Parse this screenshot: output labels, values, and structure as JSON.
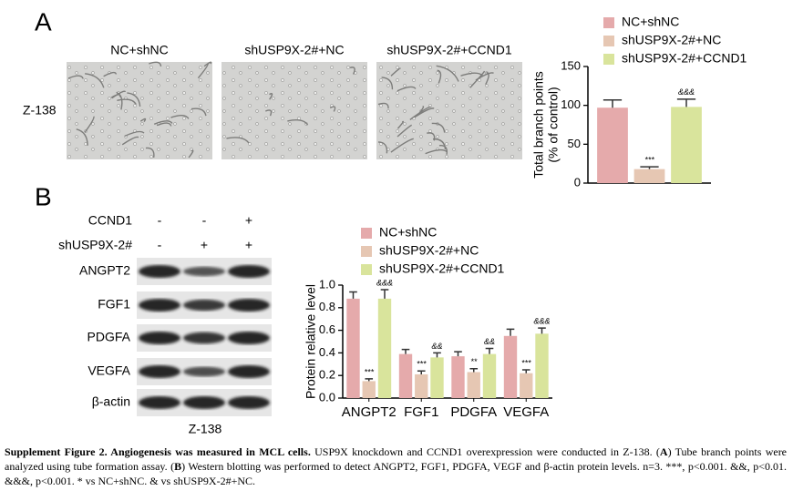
{
  "panel_a": {
    "label": "A",
    "cell_line": "Z-138",
    "image_labels": [
      "NC+shNC",
      "shUSP9X-2#+NC",
      "shUSP9X-2#+CCND1"
    ]
  },
  "panel_b": {
    "label": "B",
    "conditions": [
      {
        "name": "CCND1",
        "signs": [
          "-",
          "-",
          "+"
        ]
      },
      {
        "name": "shUSP9X-2#",
        "signs": [
          "-",
          "+",
          "+"
        ]
      }
    ],
    "blot_labels": [
      "ANGPT2",
      "FGF1",
      "PDGFA",
      "VEGFA",
      "β-actin"
    ],
    "cell_line": "Z-138"
  },
  "chart_data": [
    {
      "type": "bar",
      "y_label": [
        "Total branch points",
        "(% of control)"
      ],
      "categories": [
        null
      ],
      "ylim": [
        0,
        150
      ],
      "yticks": [
        0,
        50,
        100,
        150
      ],
      "series": [
        {
          "name": "NC+shNC",
          "color": "#e5aaab",
          "values": [
            97
          ],
          "errors": [
            10
          ]
        },
        {
          "name": "shUSP9X-2#+NC",
          "color": "#e6c7b3",
          "values": [
            18
          ],
          "errors": [
            3
          ],
          "significance": [
            "***"
          ]
        },
        {
          "name": "shUSP9X-2#+CCND1",
          "color": "#d9e49c",
          "values": [
            98
          ],
          "errors": [
            10
          ],
          "significance": [
            "&&&"
          ]
        }
      ]
    },
    {
      "type": "bar",
      "y_label": [
        "Protein relative level"
      ],
      "categories": [
        "ANGPT2",
        "FGF1",
        "PDGFA",
        "VEGFA"
      ],
      "ylim": [
        0,
        1
      ],
      "yticks": [
        {
          "value": 0,
          "label": "0.0"
        },
        0.2,
        0.4,
        0.6,
        0.8,
        {
          "value": 1,
          "label": "1.0"
        }
      ],
      "series": [
        {
          "name": "NC+shNC",
          "color": "#e5aaab",
          "values": [
            0.88,
            0.39,
            0.37,
            0.55
          ],
          "errors": [
            0.06,
            0.04,
            0.04,
            0.06
          ]
        },
        {
          "name": "shUSP9X-2#+NC",
          "color": "#e6c7b3",
          "values": [
            0.15,
            0.21,
            0.23,
            0.22
          ],
          "errors": [
            0.02,
            0.03,
            0.03,
            0.03
          ],
          "significance": [
            "***",
            "***",
            "**",
            "***"
          ]
        },
        {
          "name": "shUSP9X-2#+CCND1",
          "color": "#d9e49c",
          "values": [
            0.88,
            0.36,
            0.39,
            0.57
          ],
          "errors": [
            0.08,
            0.04,
            0.05,
            0.05
          ],
          "significance": [
            "&&&",
            "&&",
            "&&",
            "&&&"
          ]
        }
      ]
    }
  ],
  "caption": [
    {
      "text": "Supplement Figure 2. Angiogenesis was measured in MCL cells.",
      "bold": true
    },
    {
      "text": " USP9X knockdown and CCND1 overexpression were conducted in Z-138. ("
    },
    {
      "text": "A",
      "bold": true
    },
    {
      "text": ") Tube branch points were analyzed using tube formation assay. ("
    },
    {
      "text": "B",
      "bold": true
    },
    {
      "text": ") Western blotting was performed to detect ANGPT2, FGF1, PDGFA, VEGF and β-actin protein levels. n=3. ***, p<0.001. &&, p<0.01. &&&, p<0.001. * vs NC+shNC. & vs shUSP9X-2#+NC."
    }
  ]
}
